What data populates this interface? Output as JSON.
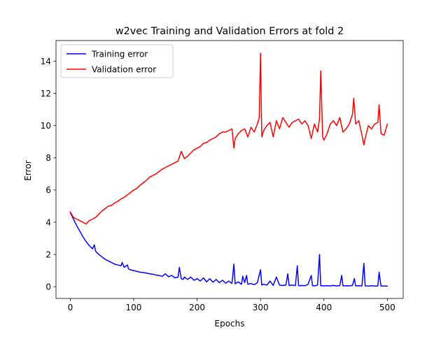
{
  "chart_data": {
    "type": "line",
    "title": "w2vec Training and Validation Errors at fold 2",
    "xlabel": "Epochs",
    "ylabel": "Error",
    "xlim": [
      -22.5,
      525
    ],
    "ylim": [
      -0.73,
      15.28
    ],
    "xticks": [
      0,
      100,
      200,
      300,
      400,
      500
    ],
    "yticks": [
      0,
      2,
      4,
      6,
      8,
      10,
      12,
      14
    ],
    "grid": false,
    "legend_position": "top-left",
    "series": [
      {
        "name": "Training error",
        "color": "#0000ff",
        "x": [
          0,
          5,
          10,
          15,
          20,
          25,
          30,
          35,
          38,
          40,
          45,
          50,
          55,
          60,
          65,
          70,
          75,
          80,
          82,
          85,
          90,
          92,
          95,
          100,
          105,
          110,
          115,
          120,
          125,
          130,
          135,
          140,
          145,
          150,
          155,
          160,
          165,
          170,
          172,
          175,
          178,
          180,
          185,
          190,
          195,
          200,
          205,
          210,
          215,
          220,
          225,
          230,
          235,
          240,
          245,
          250,
          255,
          258,
          260,
          265,
          270,
          272,
          275,
          278,
          280,
          285,
          290,
          295,
          300,
          302,
          305,
          310,
          315,
          320,
          325,
          330,
          335,
          340,
          343,
          345,
          350,
          355,
          358,
          360,
          362,
          365,
          370,
          375,
          380,
          382,
          385,
          390,
          393,
          395,
          398,
          400,
          405,
          410,
          415,
          420,
          425,
          428,
          430,
          435,
          440,
          445,
          448,
          450,
          455,
          460,
          463,
          465,
          470,
          475,
          480,
          485,
          487,
          490,
          495,
          500
        ],
        "y": [
          4.6,
          4.2,
          3.8,
          3.45,
          3.1,
          2.8,
          2.55,
          2.35,
          2.6,
          2.2,
          2.0,
          1.85,
          1.7,
          1.6,
          1.5,
          1.4,
          1.35,
          1.3,
          1.5,
          1.2,
          1.35,
          1.1,
          1.05,
          1.0,
          0.95,
          0.9,
          0.88,
          0.85,
          0.8,
          0.78,
          0.72,
          0.7,
          0.65,
          0.8,
          0.62,
          0.7,
          0.55,
          0.6,
          1.2,
          0.5,
          0.45,
          0.6,
          0.45,
          0.6,
          0.4,
          0.5,
          0.35,
          0.55,
          0.3,
          0.5,
          0.28,
          0.45,
          0.25,
          0.4,
          0.22,
          0.35,
          0.2,
          1.4,
          0.18,
          0.3,
          0.15,
          0.65,
          0.25,
          0.7,
          0.15,
          0.2,
          0.12,
          0.25,
          1.05,
          0.1,
          0.15,
          0.1,
          0.35,
          0.08,
          0.6,
          0.1,
          0.08,
          0.1,
          0.8,
          0.08,
          0.1,
          0.07,
          1.3,
          0.07,
          0.06,
          0.08,
          0.06,
          0.15,
          0.7,
          0.06,
          0.05,
          0.1,
          2.0,
          0.05,
          0.06,
          0.05,
          0.06,
          0.05,
          0.08,
          0.05,
          0.06,
          0.7,
          0.05,
          0.06,
          0.05,
          0.08,
          0.5,
          0.05,
          0.06,
          0.05,
          1.45,
          0.05,
          0.04,
          0.06,
          0.04,
          0.05,
          0.9,
          0.04,
          0.04,
          0.04
        ]
      },
      {
        "name": "Validation error",
        "color": "#ff0000",
        "x": [
          0,
          5,
          10,
          15,
          20,
          25,
          30,
          35,
          40,
          45,
          50,
          55,
          60,
          65,
          70,
          75,
          80,
          85,
          90,
          95,
          100,
          105,
          110,
          115,
          120,
          125,
          130,
          135,
          140,
          145,
          150,
          155,
          160,
          165,
          170,
          175,
          180,
          185,
          190,
          195,
          200,
          205,
          210,
          215,
          220,
          225,
          230,
          235,
          240,
          245,
          250,
          255,
          258,
          260,
          265,
          270,
          275,
          280,
          285,
          290,
          295,
          298,
          300,
          302,
          305,
          310,
          315,
          320,
          325,
          330,
          335,
          340,
          345,
          350,
          355,
          360,
          365,
          370,
          375,
          380,
          385,
          390,
          393,
          395,
          398,
          400,
          405,
          410,
          415,
          420,
          425,
          430,
          435,
          440,
          445,
          447,
          450,
          455,
          460,
          463,
          465,
          470,
          475,
          480,
          485,
          487,
          490,
          495,
          500
        ],
        "y": [
          4.65,
          4.3,
          4.2,
          4.1,
          4.0,
          3.9,
          4.1,
          4.2,
          4.3,
          4.5,
          4.7,
          4.85,
          5.0,
          5.05,
          5.2,
          5.3,
          5.45,
          5.55,
          5.7,
          5.85,
          6.0,
          6.1,
          6.3,
          6.45,
          6.6,
          6.8,
          6.9,
          7.0,
          7.15,
          7.3,
          7.4,
          7.5,
          7.6,
          7.7,
          7.8,
          8.4,
          7.95,
          8.1,
          8.3,
          8.5,
          8.6,
          8.7,
          8.9,
          8.95,
          9.1,
          9.2,
          9.3,
          9.5,
          9.6,
          9.6,
          9.7,
          9.8,
          8.6,
          9.2,
          9.5,
          9.7,
          9.8,
          9.3,
          9.9,
          9.6,
          10.1,
          10.5,
          14.5,
          9.3,
          9.7,
          10.0,
          10.2,
          9.3,
          10.3,
          9.8,
          10.5,
          10.2,
          9.9,
          10.2,
          10.3,
          10.4,
          10.1,
          10.3,
          10.0,
          9.2,
          10.1,
          9.6,
          10.4,
          13.4,
          9.3,
          9.1,
          9.5,
          10.1,
          10.3,
          10.0,
          10.5,
          9.6,
          9.8,
          10.1,
          10.7,
          11.7,
          10.1,
          10.3,
          9.4,
          8.8,
          9.2,
          10.0,
          9.8,
          10.1,
          10.2,
          11.3,
          9.5,
          9.4,
          10.1
        ]
      }
    ]
  }
}
